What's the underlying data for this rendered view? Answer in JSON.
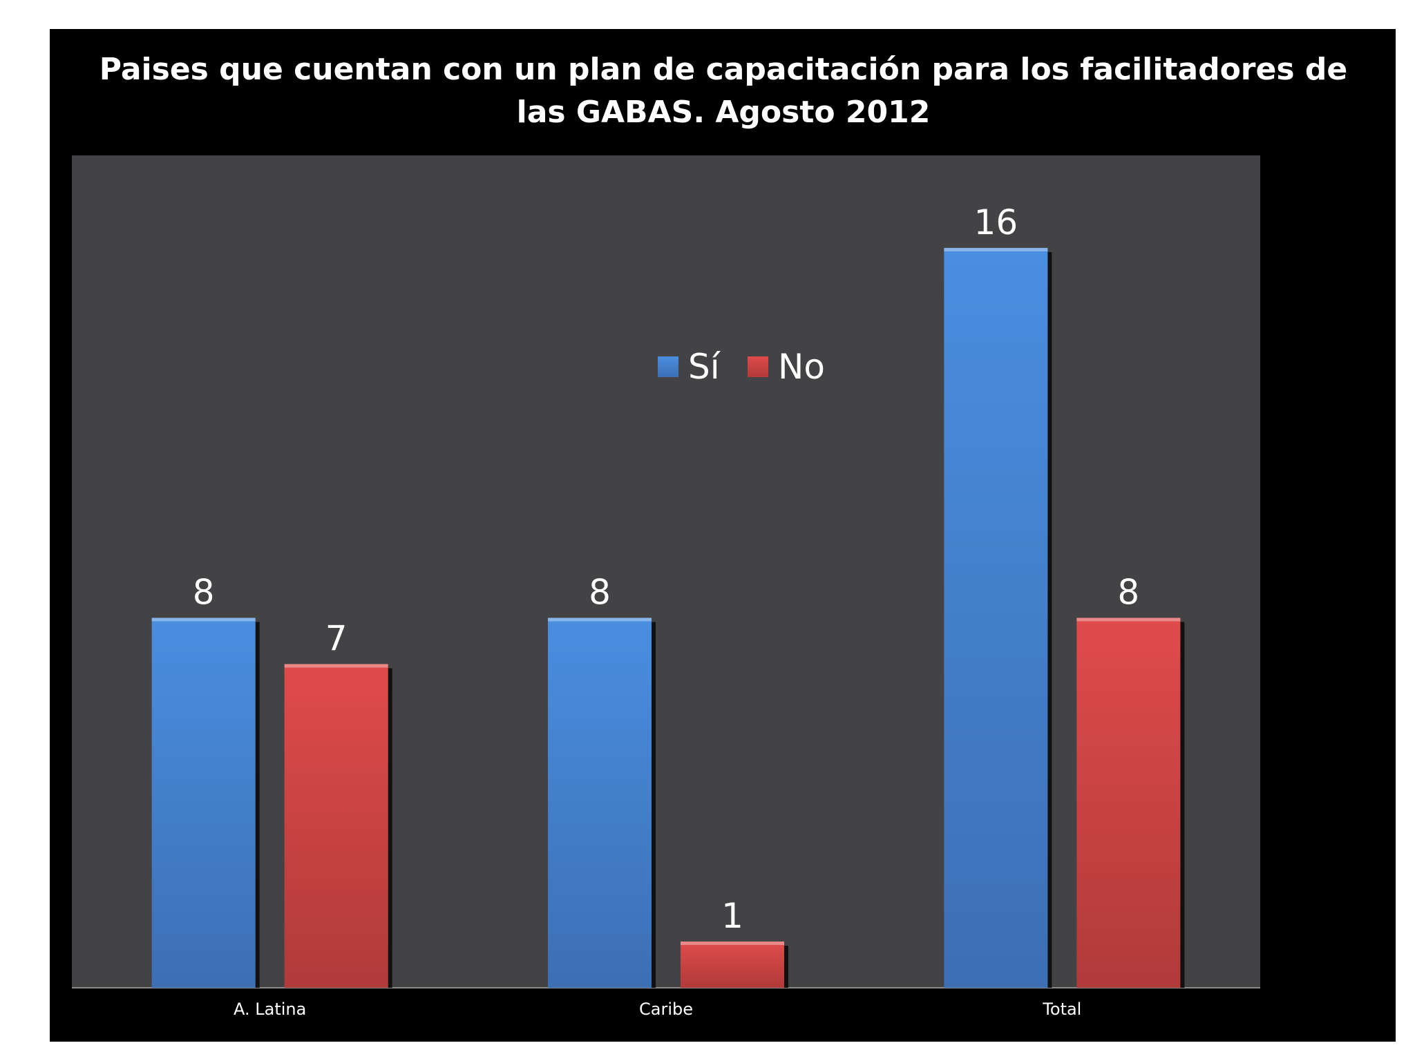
{
  "chart_data": {
    "type": "bar",
    "title": "Paises que cuentan con un plan de capacitación para los facilitadores de\nlas GABAS.  Agosto 2012",
    "categories": [
      "A. Latina",
      "Caribe",
      "Total"
    ],
    "series": [
      {
        "name": "Sí",
        "values": [
          8,
          8,
          16
        ],
        "color": "#4a8bdc"
      },
      {
        "name": "No",
        "values": [
          7,
          1,
          8
        ],
        "color": "#d94848"
      }
    ],
    "ylim": [
      0,
      18
    ],
    "xlabel": "",
    "ylabel": "",
    "grid": false,
    "legend_position": "center-top",
    "colors": {
      "frame_background": "#000000",
      "plot_background": "#434244",
      "text": "#ffffff"
    }
  }
}
